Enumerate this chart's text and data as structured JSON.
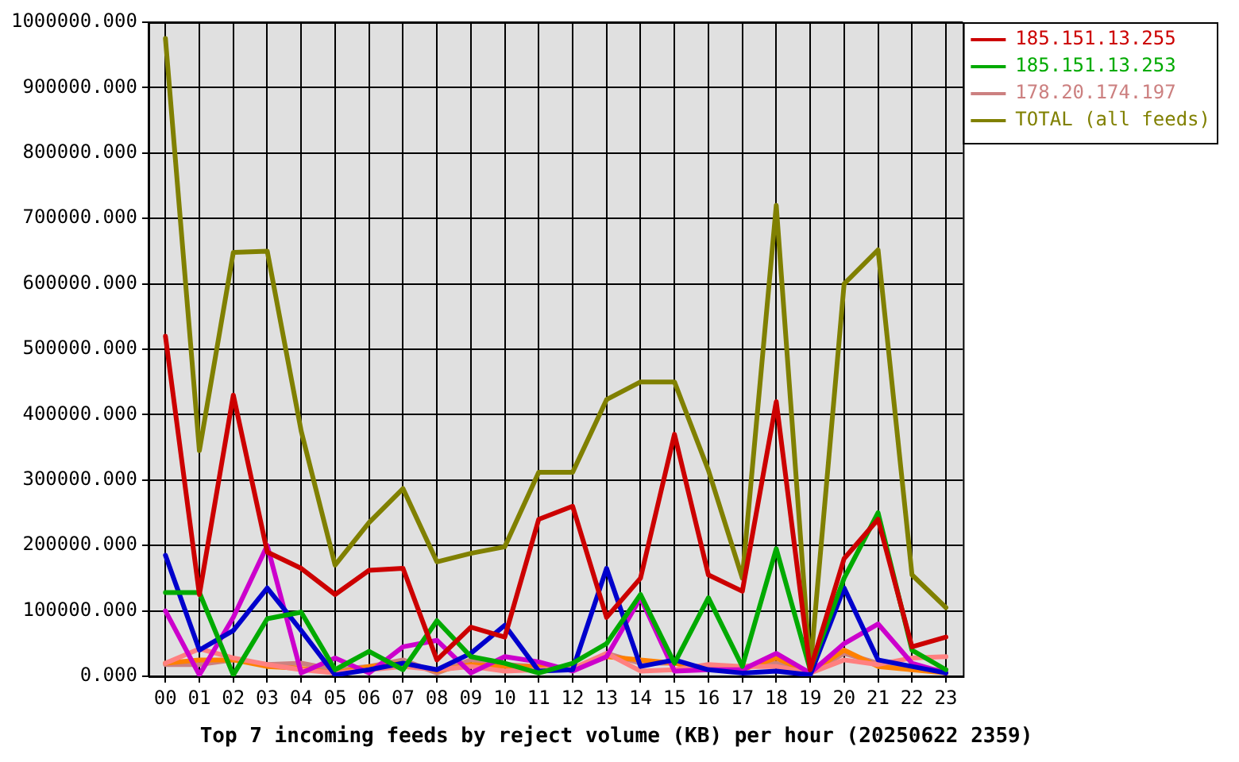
{
  "chart_data": {
    "type": "line",
    "title": "Top 7 incoming feeds by reject volume (KB) per hour (20250622 2359)",
    "categories": [
      "00",
      "01",
      "02",
      "03",
      "04",
      "05",
      "06",
      "07",
      "08",
      "09",
      "10",
      "11",
      "12",
      "13",
      "14",
      "15",
      "16",
      "17",
      "18",
      "19",
      "20",
      "21",
      "22",
      "23"
    ],
    "series": [
      {
        "name": "185.151.13.255",
        "color": "#cc0000",
        "values": [
          520000,
          125000,
          430000,
          190000,
          165000,
          125000,
          162000,
          165000,
          25000,
          75000,
          60000,
          240000,
          260000,
          90000,
          150000,
          370000,
          155000,
          130000,
          420000,
          10000,
          180000,
          240000,
          45000,
          60000
        ]
      },
      {
        "name": "185.151.13.253",
        "color": "#00aa00",
        "values": [
          128000,
          128000,
          2000,
          88000,
          98000,
          10000,
          38000,
          10000,
          85000,
          30000,
          20000,
          5000,
          20000,
          50000,
          125000,
          20000,
          120000,
          15000,
          195000,
          10000,
          150000,
          250000,
          40000,
          10000
        ]
      },
      {
        "color": "#0000cc",
        "values": [
          185000,
          40000,
          70000,
          135000,
          70000,
          2000,
          10000,
          20000,
          10000,
          35000,
          78000,
          8000,
          10000,
          165000,
          15000,
          25000,
          10000,
          5000,
          8000,
          2000,
          135000,
          25000,
          15000,
          5000
        ]
      },
      {
        "color": "#cc00cc",
        "values": [
          100000,
          2000,
          90000,
          200000,
          5000,
          28000,
          5000,
          45000,
          55000,
          5000,
          30000,
          22000,
          8000,
          30000,
          120000,
          8000,
          10000,
          10000,
          35000,
          5000,
          50000,
          80000,
          20000,
          5000
        ]
      },
      {
        "color": "#ff8080",
        "values": [
          20000,
          42000,
          28000,
          18000,
          10000,
          5000,
          10000,
          15000,
          10000,
          15000,
          8000,
          10000,
          12000,
          35000,
          8000,
          10000,
          18000,
          15000,
          15000,
          5000,
          25000,
          18000,
          28000,
          30000
        ]
      },
      {
        "color": "#ff8000",
        "values": [
          20000,
          25000,
          25000,
          15000,
          12000,
          5000,
          15000,
          20000,
          8000,
          18000,
          15000,
          15000,
          10000,
          30000,
          25000,
          20000,
          10000,
          10000,
          28000,
          5000,
          40000,
          15000,
          10000,
          5000
        ]
      },
      {
        "name": "178.20.174.197",
        "color": "#cc8080",
        "values": [
          18000,
          18000,
          25000,
          18000,
          20000,
          10000,
          15000,
          25000,
          5000,
          25000,
          18000,
          15000,
          10000,
          35000,
          20000,
          20000,
          12000,
          15000,
          20000,
          5000,
          35000,
          20000,
          10000,
          10000
        ]
      },
      {
        "name": "TOTAL (all feeds)",
        "color": "#808000",
        "values": [
          975000,
          345000,
          648000,
          650000,
          375000,
          170000,
          235000,
          287000,
          175000,
          188000,
          198000,
          312000,
          312000,
          423000,
          450000,
          450000,
          315000,
          150000,
          720000,
          10000,
          600000,
          652000,
          155000,
          105000
        ]
      }
    ],
    "ylim": [
      0,
      1000000
    ],
    "yticks": [
      {
        "value": 0,
        "label": "0.000"
      },
      {
        "value": 100000,
        "label": "100000.000"
      },
      {
        "value": 200000,
        "label": "200000.000"
      },
      {
        "value": 300000,
        "label": "300000.000"
      },
      {
        "value": 400000,
        "label": "400000.000"
      },
      {
        "value": 500000,
        "label": "500000.000"
      },
      {
        "value": 600000,
        "label": "600000.000"
      },
      {
        "value": 700000,
        "label": "700000.000"
      },
      {
        "value": 800000,
        "label": "800000.000"
      },
      {
        "value": 900000,
        "label": "900000.000"
      },
      {
        "value": 1000000,
        "label": "1000000.000"
      }
    ],
    "grid": true,
    "legend": "right",
    "marker": "none",
    "line_style": "solid"
  }
}
